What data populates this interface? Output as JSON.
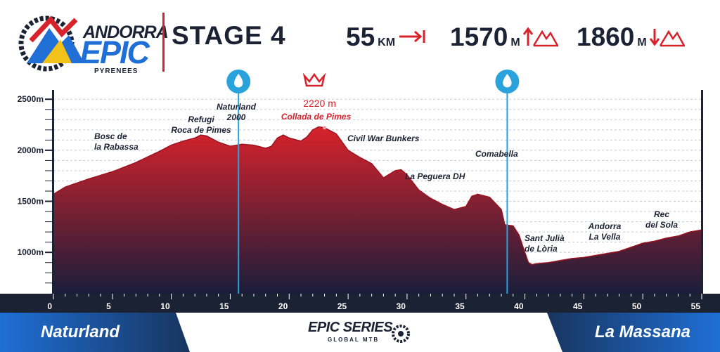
{
  "header": {
    "brand_top": "ANDORRA",
    "brand_main": "EPIC",
    "brand_sub": "PYRENEES",
    "stage_title": "STAGE 4"
  },
  "stats": {
    "distance_value": "55",
    "distance_unit": "KM",
    "ascent_value": "1570",
    "ascent_unit": "M",
    "descent_value": "1860",
    "descent_unit": "M"
  },
  "footer": {
    "start": "Naturland",
    "finish": "La Massana",
    "series_main": "EPIC SERIES",
    "series_sub": "GLOBAL MTB"
  },
  "colors": {
    "profile_top": "#d8222b",
    "profile_bottom": "#1a1d3a",
    "brand_blue": "#1f6fd6",
    "navy": "#1b2233",
    "water_marker": "#2aa3dc"
  },
  "chart_data": {
    "type": "area",
    "title": "STAGE 4",
    "xlabel": "",
    "ylabel": "",
    "xlim": [
      0,
      55
    ],
    "ylim": [
      600,
      2600
    ],
    "x_ticks": [
      0,
      5,
      10,
      15,
      20,
      25,
      30,
      35,
      40,
      45,
      50,
      55
    ],
    "y_ticks": [
      1000,
      1500,
      2000,
      2500
    ],
    "y_tick_labels": [
      "1000m",
      "1500m",
      "2000m",
      "2500m"
    ],
    "grid": "horizontal dashed",
    "series": [
      {
        "x": [
          0,
          1,
          3,
          5,
          7,
          9,
          10,
          11,
          12,
          12.5,
          13,
          14,
          15,
          16,
          17,
          18,
          18.5,
          19,
          19.5,
          20,
          21,
          21.5,
          22,
          22.5,
          23,
          24,
          25,
          26,
          27,
          28,
          29,
          29.5,
          30,
          31,
          32,
          33,
          34,
          35,
          35.5,
          36,
          37,
          38,
          38.3,
          39,
          39.5,
          40,
          40.3,
          40.6,
          41,
          42,
          43,
          44,
          45,
          46,
          47,
          48,
          49,
          50,
          51,
          52,
          53,
          54,
          55
        ],
        "y": [
          1570,
          1640,
          1720,
          1790,
          1880,
          1990,
          2050,
          2090,
          2120,
          2150,
          2140,
          2080,
          2040,
          2060,
          2050,
          2020,
          2040,
          2120,
          2150,
          2120,
          2090,
          2130,
          2200,
          2230,
          2220,
          2160,
          2000,
          1930,
          1870,
          1730,
          1800,
          1810,
          1760,
          1610,
          1530,
          1470,
          1420,
          1450,
          1550,
          1570,
          1540,
          1420,
          1270,
          1260,
          1170,
          1000,
          900,
          880,
          890,
          900,
          920,
          940,
          950,
          970,
          990,
          1010,
          1050,
          1090,
          1110,
          1140,
          1160,
          1200,
          1220
        ]
      }
    ],
    "summit": {
      "x": 23,
      "y": 2220,
      "altitude_label": "2220 m",
      "name": "Collada de Pimes"
    },
    "water_points": [
      {
        "x": 15.7,
        "name": "water-point-1"
      },
      {
        "x": 38.5,
        "name": "water-point-2"
      }
    ],
    "places": [
      {
        "lines": [
          "Bosc de",
          "la Rabassa"
        ]
      },
      {
        "lines": [
          "Refugi",
          "Roca de Pimes"
        ]
      },
      {
        "lines": [
          "Naturland",
          "2000"
        ]
      },
      {
        "lines": [
          "Civil War Bunkers"
        ]
      },
      {
        "lines": [
          "La Peguera DH"
        ]
      },
      {
        "lines": [
          "Comabella"
        ]
      },
      {
        "lines": [
          "Sant Julià",
          "de Lòria"
        ]
      },
      {
        "lines": [
          "Andorra",
          "La Vella"
        ]
      },
      {
        "lines": [
          "Rec",
          "del Sola"
        ]
      }
    ]
  }
}
